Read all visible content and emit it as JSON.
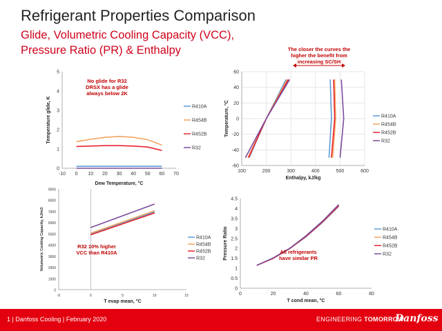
{
  "slide": {
    "title": "Refrigerant Properties Comparison",
    "subtitle_line1": "Glide, Volumetric Cooling Capacity (VCC),",
    "subtitle_line2": "Pressure Ratio (PR) & Enthalpy",
    "footer_page": "1",
    "footer_text": "Danfoss Cooling | February 2020",
    "footer_tag_regular": "ENGINEERING",
    "footer_tag_bold": "TOMORROW",
    "logo_text": "Danfoss"
  },
  "colors": {
    "R410A": "#5b9bd5",
    "R454B": "#f4a460",
    "R452B": "#e8222c",
    "R32": "#7b4a9e",
    "accent": "#c00000"
  },
  "chart_data": [
    {
      "id": "glide",
      "type": "line",
      "xlabel": "Dew Temperature, °C",
      "ylabel": "Temperature glide, K",
      "xlim": [
        -10,
        70
      ],
      "ylim": [
        0,
        5
      ],
      "xticks": [
        -10,
        0,
        10,
        20,
        30,
        40,
        50,
        60,
        70
      ],
      "yticks": [
        0,
        1,
        2,
        3,
        4,
        5
      ],
      "annotation": [
        "No glide for R32",
        "DRSX has a glide",
        "always below 2K"
      ],
      "series": [
        {
          "name": "R410A",
          "x": [
            0,
            10,
            20,
            30,
            40,
            50,
            60
          ],
          "y": [
            0.1,
            0.1,
            0.1,
            0.1,
            0.1,
            0.1,
            0.1
          ]
        },
        {
          "name": "R454B",
          "x": [
            0,
            10,
            20,
            30,
            40,
            50,
            60
          ],
          "y": [
            1.38,
            1.5,
            1.6,
            1.65,
            1.6,
            1.48,
            1.2
          ]
        },
        {
          "name": "R452B",
          "x": [
            0,
            10,
            20,
            30,
            40,
            50,
            60
          ],
          "y": [
            1.13,
            1.15,
            1.17,
            1.17,
            1.15,
            1.1,
            0.92
          ]
        },
        {
          "name": "R32",
          "x": [
            0,
            60
          ],
          "y": [
            0,
            0
          ]
        }
      ]
    },
    {
      "id": "enthalpy",
      "type": "line",
      "xlabel": "Enthalpy, kJ/kg",
      "ylabel": "Temperature, °C",
      "xlim": [
        100,
        600
      ],
      "ylim": [
        -60,
        60
      ],
      "xticks": [
        100,
        200,
        300,
        400,
        500,
        600
      ],
      "yticks": [
        -60,
        -40,
        -20,
        0,
        20,
        40,
        60
      ],
      "annotation": [
        "The closer the curves the",
        "higher the benefit from",
        "increasing SC/SH"
      ],
      "series": [
        {
          "name": "R410A",
          "x": [
            130,
            200,
            280
          ],
          "y": [
            -50,
            0,
            50
          ],
          "x2": [
            455,
            465,
            460
          ],
          "y2": [
            -50,
            0,
            50
          ]
        },
        {
          "name": "R454B",
          "x": [
            125,
            200,
            285
          ],
          "y": [
            -50,
            0,
            50
          ],
          "x2": [
            470,
            482,
            478
          ],
          "y2": [
            -50,
            0,
            50
          ]
        },
        {
          "name": "R452B",
          "x": [
            128,
            200,
            290
          ],
          "y": [
            -50,
            0,
            50
          ],
          "x2": [
            465,
            478,
            474
          ],
          "y2": [
            -50,
            0,
            50
          ]
        },
        {
          "name": "R32",
          "x": [
            115,
            200,
            295
          ],
          "y": [
            -50,
            0,
            50
          ],
          "x2": [
            500,
            515,
            505
          ],
          "y2": [
            -50,
            0,
            50
          ]
        }
      ]
    },
    {
      "id": "vcc",
      "type": "line",
      "xlabel": "T evap mean, °C",
      "ylabel": "Volumetric Cooling Capacity, kJ/m3",
      "xlim": [
        -5,
        15
      ],
      "ylim": [
        0,
        9000
      ],
      "xticks": [
        -5,
        0,
        5,
        10,
        15
      ],
      "yticks": [
        0,
        1000,
        2000,
        3000,
        4000,
        5000,
        6000,
        7000,
        8000,
        9000
      ],
      "annotation": [
        "R32 10% higher",
        "VCC than R410A"
      ],
      "series": [
        {
          "name": "R410A",
          "x": [
            0,
            10
          ],
          "y": [
            5000,
            6950
          ]
        },
        {
          "name": "R454B",
          "x": [
            0,
            10
          ],
          "y": [
            5050,
            7050
          ]
        },
        {
          "name": "R452B",
          "x": [
            0,
            10
          ],
          "y": [
            4900,
            6850
          ]
        },
        {
          "name": "R32",
          "x": [
            0,
            10
          ],
          "y": [
            5550,
            7650
          ]
        }
      ]
    },
    {
      "id": "pressure_ratio",
      "type": "line",
      "xlabel": "T cond mean, °C",
      "ylabel": "Pressure Ratio",
      "xlim": [
        0,
        80
      ],
      "ylim": [
        0,
        4.5
      ],
      "xticks": [
        0,
        20,
        40,
        60,
        80
      ],
      "yticks": [
        0,
        0.5,
        1,
        1.5,
        2,
        2.5,
        3,
        3.5,
        4,
        4.5
      ],
      "annotation": [
        "All refrigerants",
        "have similar PR"
      ],
      "series": [
        {
          "name": "R410A",
          "x": [
            10,
            20,
            30,
            40,
            50,
            60
          ],
          "y": [
            1.15,
            1.5,
            1.98,
            2.58,
            3.3,
            4.12
          ]
        },
        {
          "name": "R454B",
          "x": [
            10,
            20,
            30,
            40,
            50,
            60
          ],
          "y": [
            1.15,
            1.5,
            1.98,
            2.6,
            3.32,
            4.15
          ]
        },
        {
          "name": "R452B",
          "x": [
            10,
            20,
            30,
            40,
            50,
            60
          ],
          "y": [
            1.15,
            1.5,
            1.99,
            2.6,
            3.32,
            4.14
          ]
        },
        {
          "name": "R32",
          "x": [
            10,
            20,
            30,
            40,
            50,
            60
          ],
          "y": [
            1.15,
            1.52,
            2.0,
            2.63,
            3.36,
            4.2
          ]
        }
      ]
    }
  ]
}
